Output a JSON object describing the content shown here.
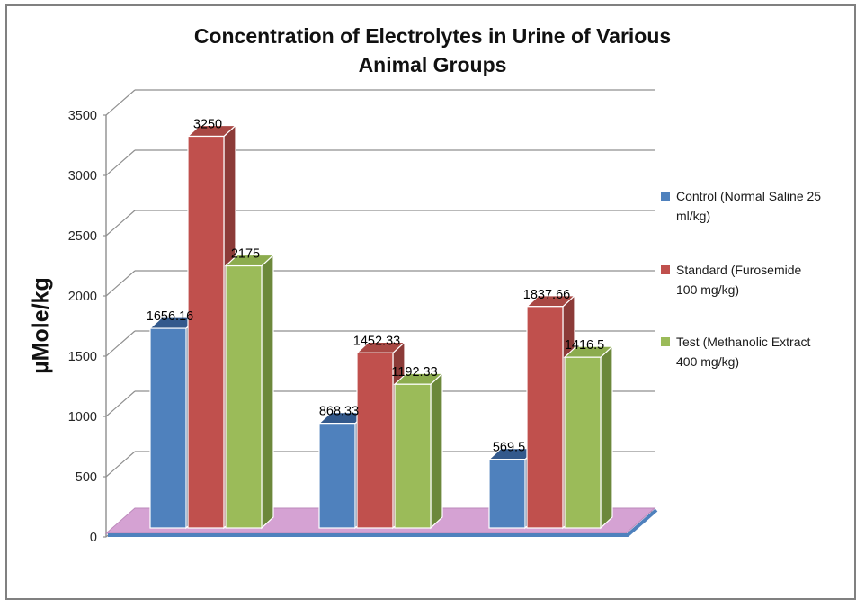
{
  "frame": {
    "border_color": "#808080"
  },
  "title": {
    "line1": "Concentration of Electrolytes in Urine of Various",
    "line2": "Animal Groups"
  },
  "y_axis": {
    "label": "µMole/kg",
    "ticks": [
      0,
      500,
      1000,
      1500,
      2000,
      2500,
      3000,
      3500
    ],
    "max": 3500
  },
  "chart_data": {
    "type": "bar",
    "style": "3d-clustered-column",
    "title": "Concentration of Electrolytes in Urine of Various Animal Groups",
    "xlabel": "",
    "ylabel": "µMole/kg",
    "ylim": [
      0,
      3500
    ],
    "y_tick_step": 500,
    "gridlines": "horizontal",
    "legend_position": "right",
    "data_labels": true,
    "n_groups": 3,
    "series": [
      {
        "name": "Control (Normal Saline 25 ml/kg)",
        "color": "#4F81BD",
        "top_color": "#33598C",
        "side_color": "#2B4C78",
        "values": [
          1656.16,
          868.33,
          569.5
        ]
      },
      {
        "name": "Standard (Furosemide 100 mg/kg)",
        "color": "#C0504D",
        "top_color": "#A94844",
        "side_color": "#8C3B38",
        "values": [
          3250,
          1452.33,
          1837.66
        ]
      },
      {
        "name": "Test (Methanolic Extract 400 mg/kg)",
        "color": "#9BBB59",
        "top_color": "#8CAC4E",
        "side_color": "#6C883B",
        "values": [
          2175,
          1192.33,
          1416.5
        ]
      }
    ],
    "floor_color": "#D5A2D3",
    "floor_edge_color": "#4F81BD",
    "gridline_color": "#8F8F8F"
  },
  "legend": {
    "items": [
      {
        "line1": "Control (Normal Saline 25",
        "line2": "ml/kg)",
        "color": "#4F81BD"
      },
      {
        "line1": "Standard (Furosemide",
        "line2": "100 mg/kg)",
        "color": "#C0504D"
      },
      {
        "line1": "Test (Methanolic Extract",
        "line2": "400 mg/kg)",
        "color": "#9BBB59"
      }
    ]
  }
}
